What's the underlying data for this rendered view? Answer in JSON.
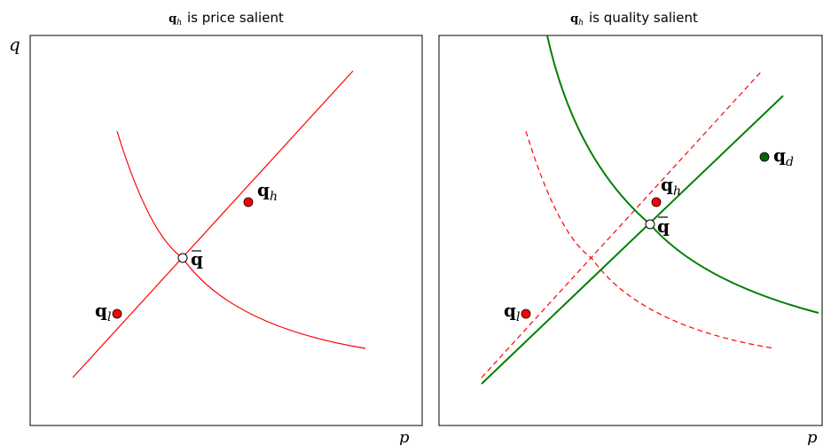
{
  "panels": [
    {
      "title_symbol": "q",
      "title_sub": "h",
      "title_text": "is price salient",
      "y_axis_label": "q",
      "x_axis_label": "p"
    },
    {
      "title_symbol": "q",
      "title_sub": "h",
      "title_text": "is quality salient",
      "x_axis_label": "p"
    }
  ],
  "points": {
    "q_h": {
      "symbol": "q",
      "sub": "h"
    },
    "q_l": {
      "symbol": "q",
      "sub": "l"
    },
    "q_bar": {
      "symbol": "q"
    },
    "q_d": {
      "symbol": "q",
      "sub": "d"
    }
  },
  "colors": {
    "red": "#ff0000",
    "green": "#008000",
    "dark_green": "#006400",
    "frame": "#000000"
  }
}
